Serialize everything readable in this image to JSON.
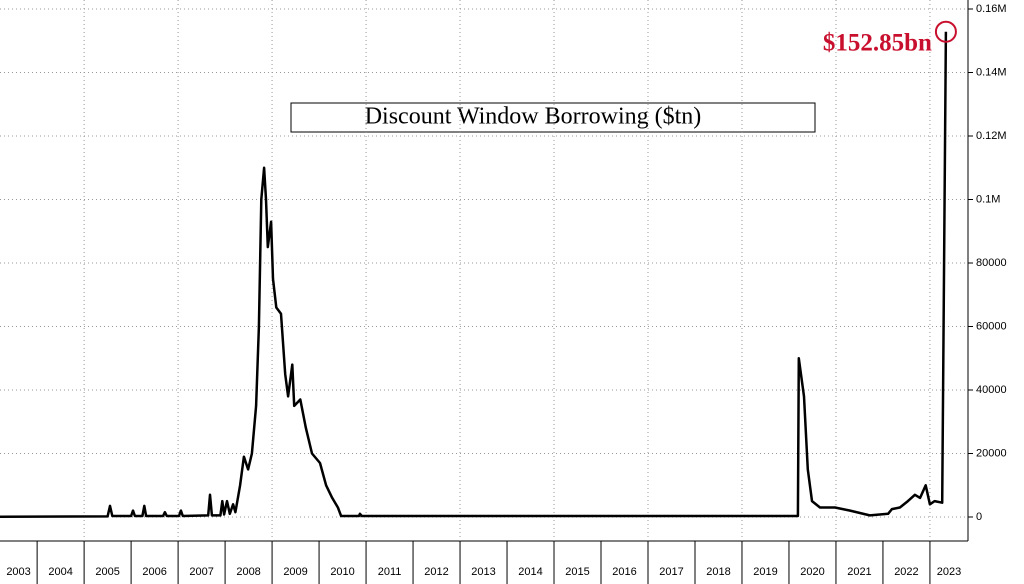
{
  "chart_data": {
    "type": "line",
    "title": "Discount Window Borrowing ($tn)",
    "annotation": "$152.85bn",
    "annotation_color": "#c8102e",
    "grid": true,
    "x": [
      2003.21,
      2005.5,
      2005.55,
      2005.6,
      2006.0,
      2006.04,
      2006.08,
      2006.24,
      2006.28,
      2006.32,
      2006.68,
      2006.72,
      2006.76,
      2007.02,
      2007.06,
      2007.1,
      2007.64,
      2007.68,
      2007.72,
      2007.9,
      2007.94,
      2007.98,
      2008.04,
      2008.1,
      2008.17,
      2008.22,
      2008.32,
      2008.4,
      2008.49,
      2008.57,
      2008.66,
      2008.72,
      2008.77,
      2008.83,
      2008.87,
      2008.91,
      2008.98,
      2009.02,
      2009.09,
      2009.19,
      2009.28,
      2009.34,
      2009.43,
      2009.47,
      2009.6,
      2009.72,
      2009.85,
      2010.02,
      2010.15,
      2010.28,
      2010.4,
      2010.47,
      2010.85,
      2010.87,
      2010.91,
      2020.15,
      2020.19,
      2020.21,
      2020.32,
      2020.4,
      2020.49,
      2020.66,
      2020.98,
      2021.3,
      2021.72,
      2022.11,
      2022.19,
      2022.36,
      2022.53,
      2022.68,
      2022.79,
      2022.91,
      2023.0,
      2023.1,
      2023.26,
      2023.34
    ],
    "series": [
      {
        "name": "Discount Window Borrowing",
        "color": "#000000",
        "values": [
          100,
          200,
          3500,
          300,
          300,
          2000,
          300,
          300,
          3500,
          300,
          300,
          1500,
          300,
          300,
          2000,
          300,
          500,
          7000,
          500,
          500,
          5000,
          800,
          5000,
          1000,
          4000,
          1500,
          10000,
          19000,
          15000,
          20000,
          35000,
          60000,
          100000,
          110000,
          100000,
          85000,
          93000,
          75000,
          66000,
          64000,
          45000,
          38000,
          48000,
          35000,
          37000,
          28000,
          20000,
          17000,
          10000,
          6000,
          3000,
          300,
          300,
          1000,
          300,
          300,
          300,
          50000,
          38000,
          15000,
          5000,
          3000,
          3000,
          2000,
          500,
          1000,
          2500,
          3000,
          5000,
          7000,
          6000,
          10000,
          4000,
          5000,
          4500,
          152850
        ]
      }
    ],
    "xlim": [
      2003.21,
      2023.81
    ],
    "xticks": [
      2003,
      2004,
      2005,
      2006,
      2007,
      2008,
      2009,
      2010,
      2011,
      2012,
      2013,
      2014,
      2015,
      2016,
      2017,
      2018,
      2019,
      2020,
      2021,
      2022,
      2023
    ],
    "ylim": [
      0,
      160000
    ],
    "yticks": [
      0,
      20000,
      40000,
      60000,
      80000,
      {
        "value": 100000,
        "label": "0.1M"
      },
      {
        "value": 120000,
        "label": "0.12M"
      },
      {
        "value": 140000,
        "label": "0.14M"
      },
      {
        "value": 160000,
        "label": "0.16M"
      }
    ]
  }
}
